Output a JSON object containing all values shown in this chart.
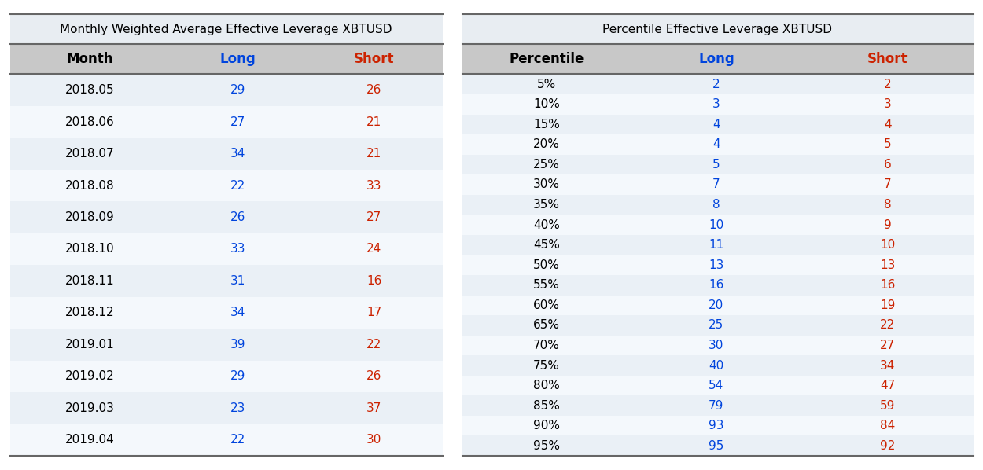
{
  "table1_title": "Monthly Weighted Average Effective Leverage XBTUSD",
  "table1_headers": [
    "Month",
    "Long",
    "Short"
  ],
  "table1_rows": [
    [
      "2018.05",
      "29",
      "26"
    ],
    [
      "2018.06",
      "27",
      "21"
    ],
    [
      "2018.07",
      "34",
      "21"
    ],
    [
      "2018.08",
      "22",
      "33"
    ],
    [
      "2018.09",
      "26",
      "27"
    ],
    [
      "2018.10",
      "33",
      "24"
    ],
    [
      "2018.11",
      "31",
      "16"
    ],
    [
      "2018.12",
      "34",
      "17"
    ],
    [
      "2019.01",
      "39",
      "22"
    ],
    [
      "2019.02",
      "29",
      "26"
    ],
    [
      "2019.03",
      "23",
      "37"
    ],
    [
      "2019.04",
      "22",
      "30"
    ]
  ],
  "table2_title": "Percentile Effective Leverage XBTUSD",
  "table2_headers": [
    "Percentile",
    "Long",
    "Short"
  ],
  "table2_rows": [
    [
      "5%",
      "2",
      "2"
    ],
    [
      "10%",
      "3",
      "3"
    ],
    [
      "15%",
      "4",
      "4"
    ],
    [
      "20%",
      "4",
      "5"
    ],
    [
      "25%",
      "5",
      "6"
    ],
    [
      "30%",
      "7",
      "7"
    ],
    [
      "35%",
      "8",
      "8"
    ],
    [
      "40%",
      "10",
      "9"
    ],
    [
      "45%",
      "11",
      "10"
    ],
    [
      "50%",
      "13",
      "13"
    ],
    [
      "55%",
      "16",
      "16"
    ],
    [
      "60%",
      "20",
      "19"
    ],
    [
      "65%",
      "25",
      "22"
    ],
    [
      "70%",
      "30",
      "27"
    ],
    [
      "75%",
      "40",
      "34"
    ],
    [
      "80%",
      "54",
      "47"
    ],
    [
      "85%",
      "79",
      "59"
    ],
    [
      "90%",
      "93",
      "84"
    ],
    [
      "95%",
      "95",
      "92"
    ]
  ],
  "bg_color": "#e8edf2",
  "header_bg": "#c8c8c8",
  "col1_color": "#000000",
  "col2_color": "#0044dd",
  "col3_color": "#cc2200",
  "header_col1_color": "#000000",
  "header_col2_color": "#0044dd",
  "header_col3_color": "#cc2200",
  "row_bg_even": "#eaf0f6",
  "row_bg_odd": "#f4f8fc",
  "font_size": 11,
  "title_font_size": 11,
  "header_font_size": 12,
  "line_color": "#666666",
  "line_width": 1.5
}
